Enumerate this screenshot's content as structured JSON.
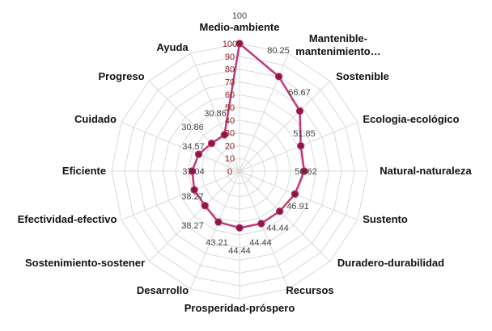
{
  "chart_data": {
    "type": "radar",
    "categories": [
      "Medio-ambiente",
      "Mantenible-mantenimiento…",
      "Sostenible",
      "Ecologia-ecológico",
      "Natural-naturaleza",
      "Sustento",
      "Duradero-durabilidad",
      "Recursos",
      "Prosperidad-próspero",
      "Desarrollo",
      "Sostenimiento-sostener",
      "Efectividad-efectivo",
      "Eficiente",
      "Cuidado",
      "Progreso",
      "Ayuda"
    ],
    "values": [
      100,
      80.25,
      66.67,
      51.85,
      50.62,
      46.91,
      44.44,
      44.44,
      44.44,
      43.21,
      38.27,
      38.27,
      37.04,
      34.57,
      30.86,
      30.86
    ],
    "value_labels": [
      "100",
      "80.25",
      "66.67",
      "51.85",
      "50.62",
      "46.91",
      "44.44",
      "44.44",
      "44.44",
      "43.21",
      "38.27",
      "38.27",
      "37.04",
      "34.57",
      "30.86",
      "30.86"
    ],
    "r_ticks": [
      "0",
      "10",
      "20",
      "30",
      "40",
      "50",
      "60",
      "70",
      "80",
      "90",
      "100"
    ],
    "rlim": [
      0,
      100
    ],
    "grid": true,
    "legend": "none",
    "colors": {
      "series": "#c0397e",
      "marker": "#8b1a3a",
      "grid": "#d9d9d9",
      "tick": "#8b1a1a"
    }
  }
}
